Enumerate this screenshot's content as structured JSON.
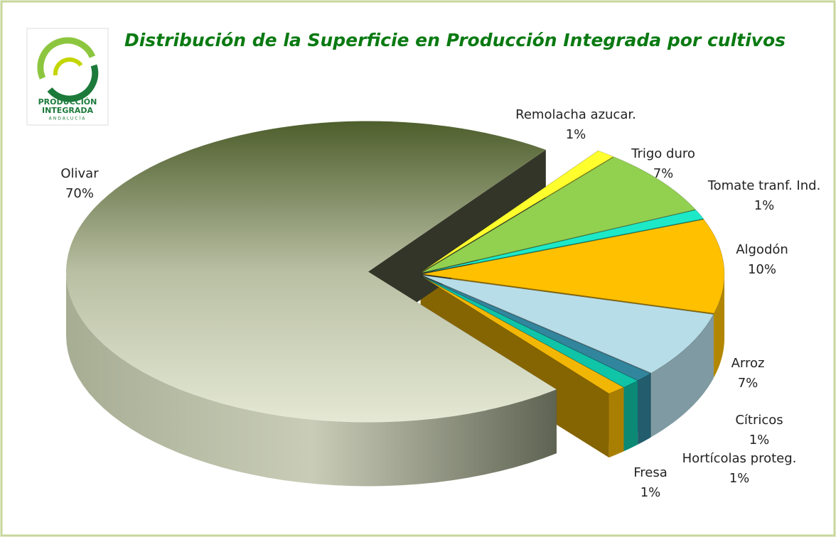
{
  "chart_data": {
    "type": "pie3d",
    "title": "Distribución de la Superficie en Producción Integrada por cultivos",
    "logo_text": [
      "PRODUCCIÓN",
      "INTEGRADA",
      "ANDALUCÍA"
    ],
    "categories": [
      "Remolacha azucar.",
      "Trigo duro",
      "Tomate tranf. Ind.",
      "Algodón",
      "Arroz",
      "Cítricos",
      "Hortícolas proteg.",
      "Fresa",
      "Olivar"
    ],
    "values": [
      1,
      7,
      1,
      10,
      7,
      1,
      1,
      1,
      70
    ],
    "value_labels": [
      "1%",
      "7%",
      "1%",
      "10%",
      "7%",
      "1%",
      "1%",
      "1%",
      "70%"
    ],
    "colors": [
      "#ffff2e",
      "#92d050",
      "#1de9c8",
      "#ffc000",
      "#b7dde8",
      "#31859c",
      "#10c4a8",
      "#f2b705",
      "#9ea58a"
    ]
  }
}
